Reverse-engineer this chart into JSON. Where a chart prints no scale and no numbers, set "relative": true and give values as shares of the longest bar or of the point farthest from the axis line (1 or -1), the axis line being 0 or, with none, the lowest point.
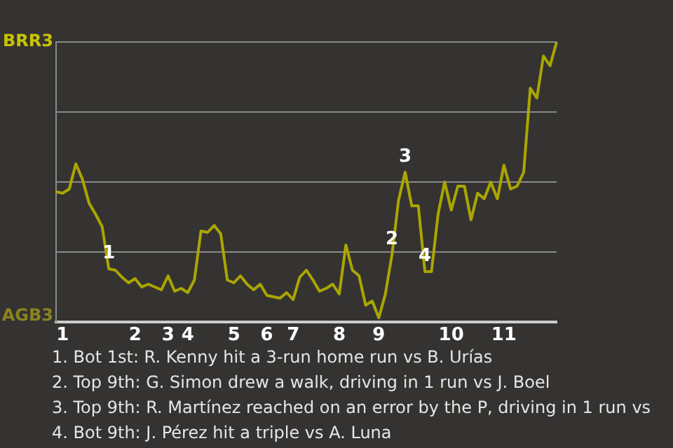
{
  "chart_data": {
    "type": "line",
    "relative": true,
    "categories": [
      null,
      "1",
      null,
      null,
      null,
      null,
      null,
      null,
      null,
      null,
      null,
      null,
      "2",
      null,
      null,
      null,
      null,
      "3",
      null,
      null,
      "4",
      null,
      null,
      null,
      null,
      null,
      null,
      "5",
      null,
      null,
      null,
      null,
      "6",
      null,
      null,
      null,
      "7",
      null,
      null,
      null,
      null,
      null,
      null,
      "8",
      null,
      null,
      null,
      null,
      null,
      "9",
      null,
      null,
      null,
      null,
      null,
      null,
      null,
      null,
      null,
      null,
      "10",
      null,
      null,
      null,
      null,
      null,
      null,
      null,
      "11",
      null,
      null,
      null,
      null,
      null,
      null,
      null,
      null
    ],
    "series": [
      {
        "color": "#aaa600",
        "values": [
          0.465,
          0.46,
          0.475,
          0.565,
          0.51,
          0.425,
          0.385,
          0.34,
          0.19,
          0.185,
          0.16,
          0.14,
          0.155,
          0.125,
          0.135,
          0.125,
          0.115,
          0.165,
          0.11,
          0.12,
          0.105,
          0.15,
          0.325,
          0.32,
          0.345,
          0.315,
          0.15,
          0.14,
          0.165,
          0.135,
          0.115,
          0.135,
          0.095,
          0.09,
          0.085,
          0.105,
          0.08,
          0.16,
          0.185,
          0.15,
          0.11,
          0.12,
          0.135,
          0.1,
          0.275,
          0.185,
          0.165,
          0.06,
          0.075,
          0.015,
          0.1,
          0.24,
          0.435,
          0.535,
          0.415,
          0.415,
          0.18,
          0.18,
          0.385,
          0.5,
          0.4,
          0.485,
          0.485,
          0.365,
          0.46,
          0.44,
          0.5,
          0.44,
          0.56,
          0.475,
          0.485,
          0.535,
          0.835,
          0.8,
          0.95,
          0.915,
          1
        ],
        "line_style": "solid"
      }
    ],
    "grid": "y",
    "marker": "none",
    "annotations": [
      "BRR3",
      "AGB3",
      {
        "text": "1",
        "y": 0.19
      },
      {
        "text": "2",
        "y": 0.24
      },
      {
        "text": "3",
        "y": 0.535
      },
      {
        "text": "4",
        "y": 0.18
      },
      "1. Bot 1st: R. Kenny hit a 3-run home run vs B. Urías",
      "2. Top 9th: G. Simon drew a walk, driving in 1 run vs J. Boel",
      "3. Top 9th: R. Martínez reached on an error by the P, driving in 1 run vs",
      "4. Bot 9th: J. Pérez hit a triple vs A. Luna"
    ]
  }
}
